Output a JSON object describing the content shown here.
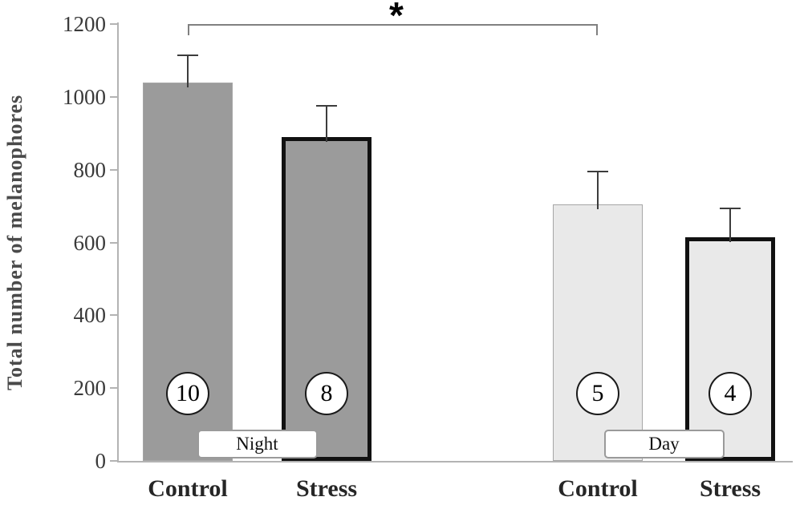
{
  "chart_data": {
    "type": "bar",
    "title": "",
    "xlabel": "",
    "ylabel": "Total number of melanophores",
    "ylim": [
      0,
      1200
    ],
    "yticks": [
      0,
      200,
      400,
      600,
      800,
      1000,
      1200
    ],
    "grid": false,
    "legend_position": "none",
    "groups": [
      {
        "label": "Night",
        "bars": [
          {
            "category": "Control",
            "value": 1040,
            "error_upper": 75,
            "n": "10",
            "fill": "#9b9b9b",
            "thick_border": false
          },
          {
            "category": "Stress",
            "value": 890,
            "error_upper": 85,
            "n": "8",
            "fill": "#9b9b9b",
            "thick_border": true
          }
        ]
      },
      {
        "label": "Day",
        "bars": [
          {
            "category": "Control",
            "value": 705,
            "error_upper": 90,
            "n": "5",
            "fill": "#e9e9e9",
            "thick_border": false
          },
          {
            "category": "Stress",
            "value": 615,
            "error_upper": 78,
            "n": "4",
            "fill": "#e9e9e9",
            "thick_border": true
          }
        ]
      }
    ],
    "significance": {
      "symbol": "*",
      "from": "Night Control",
      "to": "Day Control"
    },
    "colors": {
      "night_fill": "#9b9b9b",
      "day_fill": "#e9e9e9",
      "stress_border": "#111111",
      "axis": "#b3b3b3",
      "error_bar": "#3c3c3c",
      "text": "#262626"
    }
  }
}
